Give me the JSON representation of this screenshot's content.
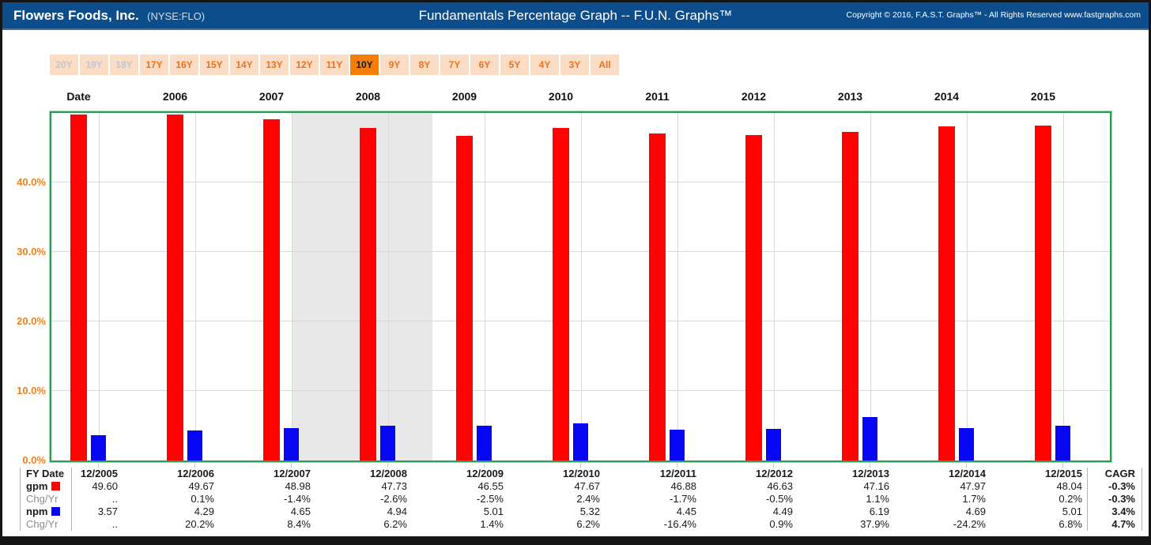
{
  "header": {
    "company": "Flowers Foods, Inc.",
    "ticker": "(NYSE:FLO)",
    "title": "Fundamentals Percentage Graph -- F.U.N. Graphs™",
    "copyright": "Copyright © 2016, F.A.S.T. Graphs™ - All Rights Reserved www.fastgraphs.com"
  },
  "toolbar": {
    "buttons": [
      {
        "label": "20Y",
        "state": "disabled"
      },
      {
        "label": "19Y",
        "state": "disabled"
      },
      {
        "label": "18Y",
        "state": "disabled"
      },
      {
        "label": "17Y",
        "state": "enabled"
      },
      {
        "label": "16Y",
        "state": "enabled"
      },
      {
        "label": "15Y",
        "state": "enabled"
      },
      {
        "label": "14Y",
        "state": "enabled"
      },
      {
        "label": "13Y",
        "state": "enabled"
      },
      {
        "label": "12Y",
        "state": "enabled"
      },
      {
        "label": "11Y",
        "state": "enabled"
      },
      {
        "label": "10Y",
        "state": "selected"
      },
      {
        "label": "9Y",
        "state": "enabled"
      },
      {
        "label": "8Y",
        "state": "enabled"
      },
      {
        "label": "7Y",
        "state": "enabled"
      },
      {
        "label": "6Y",
        "state": "enabled"
      },
      {
        "label": "5Y",
        "state": "enabled"
      },
      {
        "label": "4Y",
        "state": "enabled"
      },
      {
        "label": "3Y",
        "state": "enabled"
      },
      {
        "label": "All",
        "state": "enabled"
      }
    ]
  },
  "chart_data": {
    "type": "bar",
    "title": "Fundamentals Percentage Graph -- F.U.N. Graphs",
    "top_axis_labels": [
      "Date",
      "2006",
      "2007",
      "2008",
      "2009",
      "2010",
      "2011",
      "2012",
      "2013",
      "2014",
      "2015"
    ],
    "categories": [
      "12/2005",
      "12/2006",
      "12/2007",
      "12/2008",
      "12/2009",
      "12/2010",
      "12/2011",
      "12/2012",
      "12/2013",
      "12/2014",
      "12/2015"
    ],
    "series": [
      {
        "name": "gpm",
        "color": "#ff0202",
        "values": [
          49.6,
          49.67,
          48.98,
          47.73,
          46.55,
          47.67,
          46.88,
          46.63,
          47.16,
          47.97,
          48.04
        ]
      },
      {
        "name": "npm",
        "color": "#0606f2",
        "values": [
          3.57,
          4.29,
          4.65,
          4.94,
          5.01,
          5.32,
          4.45,
          4.49,
          6.19,
          4.69,
          5.01
        ]
      }
    ],
    "ytick_labels": [
      "0.0%",
      "10.0%",
      "20.0%",
      "30.0%",
      "40.0%"
    ],
    "ylim": [
      0,
      49.84
    ],
    "grid": true,
    "legend_position": "table-left",
    "recession_band": {
      "covers": "late 2007 to mid 2008 region",
      "color": "#e8e8e8",
      "x_start_frac": 0.227,
      "x_end_frac": 0.36
    }
  },
  "table": {
    "header_label": "FY Date",
    "cagr_header": "CAGR",
    "categories": [
      "12/2005",
      "12/2006",
      "12/2007",
      "12/2008",
      "12/2009",
      "12/2010",
      "12/2011",
      "12/2012",
      "12/2013",
      "12/2014",
      "12/2015"
    ],
    "rows": [
      {
        "label": "gpm",
        "swatch": "gpm",
        "bold": true,
        "values": [
          "49.60",
          "49.67",
          "48.98",
          "47.73",
          "46.55",
          "47.67",
          "46.88",
          "46.63",
          "47.16",
          "47.97",
          "48.04"
        ],
        "cagr": "-0.3%"
      },
      {
        "label": "Chg/Yr",
        "muted": true,
        "values": [
          "..",
          "0.1%",
          "-1.4%",
          "-2.6%",
          "-2.5%",
          "2.4%",
          "-1.7%",
          "-0.5%",
          "1.1%",
          "1.7%",
          "0.2%"
        ],
        "cagr": "-0.3%"
      },
      {
        "label": "npm",
        "swatch": "npm",
        "bold": true,
        "values": [
          "3.57",
          "4.29",
          "4.65",
          "4.94",
          "5.01",
          "5.32",
          "4.45",
          "4.49",
          "6.19",
          "4.69",
          "5.01"
        ],
        "cagr": "3.4%"
      },
      {
        "label": "Chg/Yr",
        "muted": true,
        "values": [
          "..",
          "20.2%",
          "8.4%",
          "6.2%",
          "1.4%",
          "6.2%",
          "-16.4%",
          "0.9%",
          "37.9%",
          "-24.2%",
          "6.8%"
        ],
        "cagr": "4.7%"
      }
    ]
  }
}
